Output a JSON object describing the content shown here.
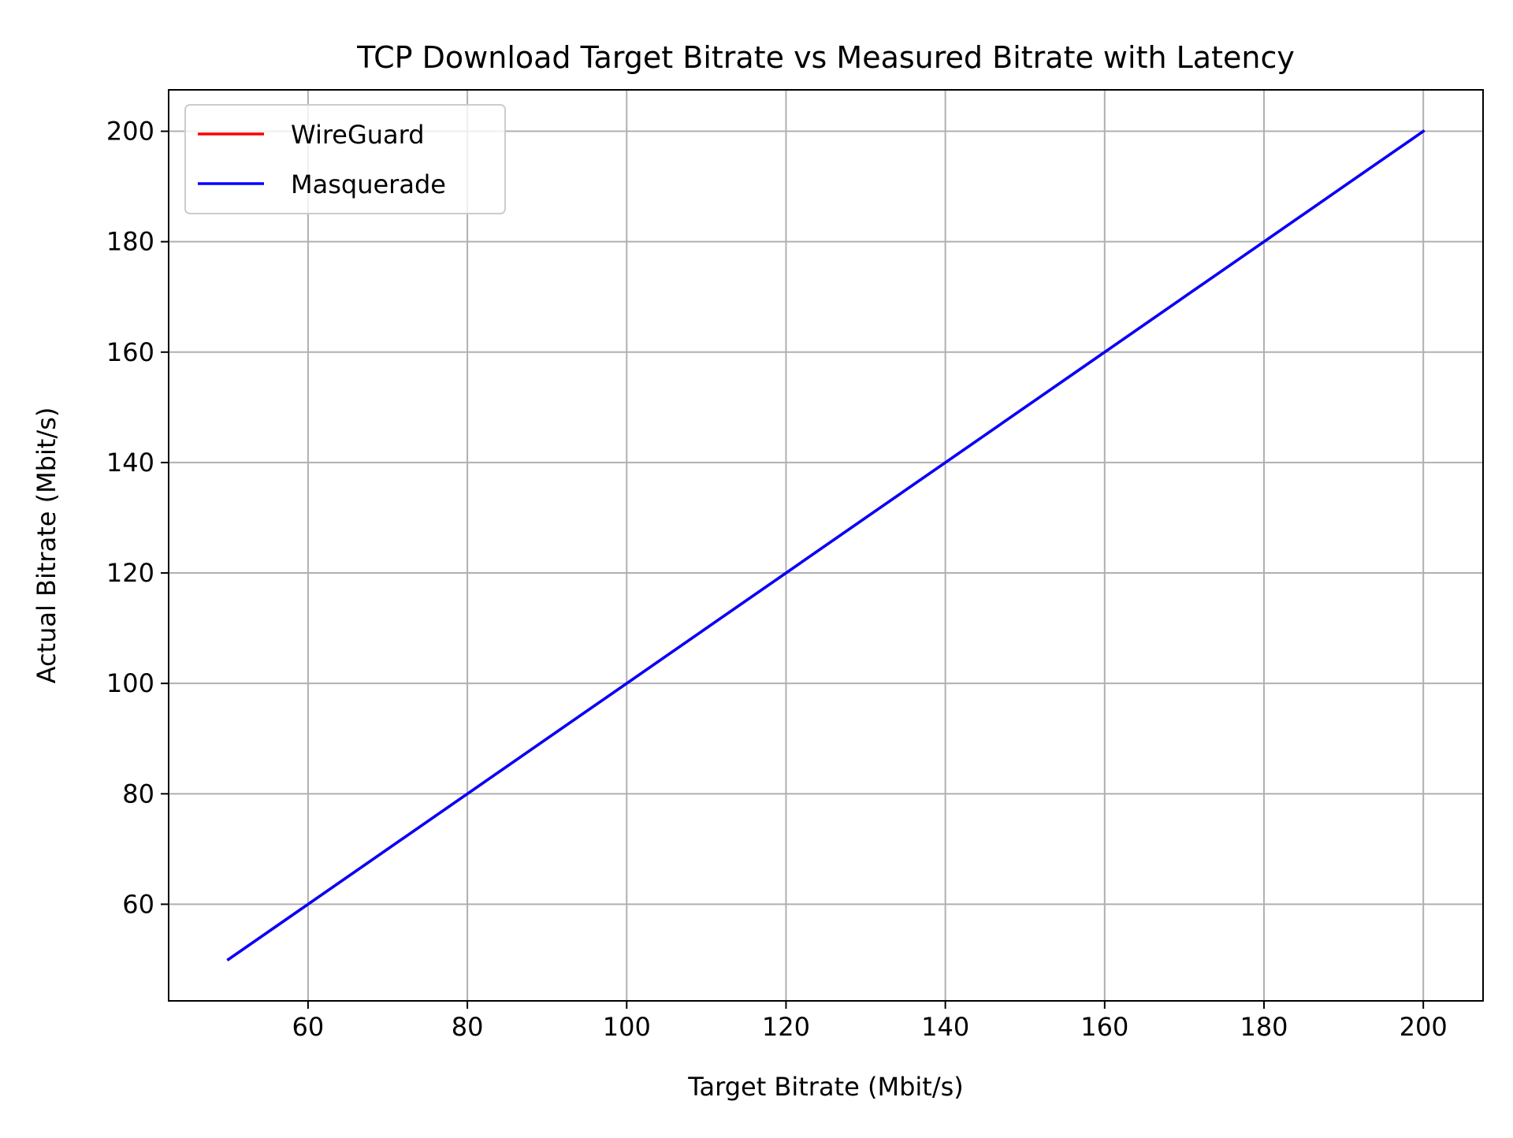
{
  "chart_data": {
    "type": "line",
    "title": "TCP Download Target Bitrate vs Measured Bitrate with Latency",
    "xlabel": "Target Bitrate (Mbit/s)",
    "ylabel": "Actual Bitrate (Mbit/s)",
    "xlim": [
      42.5,
      207.5
    ],
    "ylim": [
      42.5,
      207.5
    ],
    "xticks": [
      60,
      80,
      100,
      120,
      140,
      160,
      180,
      200
    ],
    "yticks": [
      60,
      80,
      100,
      120,
      140,
      160,
      180,
      200
    ],
    "grid": true,
    "legend_position": "top-left",
    "x": [
      50,
      60,
      70,
      80,
      90,
      100,
      110,
      120,
      130,
      140,
      150,
      160,
      170,
      180,
      190,
      200
    ],
    "series": [
      {
        "name": "WireGuard",
        "color": "#ff0000",
        "values": [
          50,
          60,
          70,
          80,
          90,
          100,
          110,
          120,
          130,
          140,
          150,
          160,
          170,
          180,
          190,
          200
        ]
      },
      {
        "name": "Masquerade",
        "color": "#0000ff",
        "values": [
          50,
          60,
          70,
          80,
          90,
          100,
          110,
          120,
          130,
          140,
          150,
          160,
          170,
          180,
          190,
          200
        ]
      }
    ]
  }
}
